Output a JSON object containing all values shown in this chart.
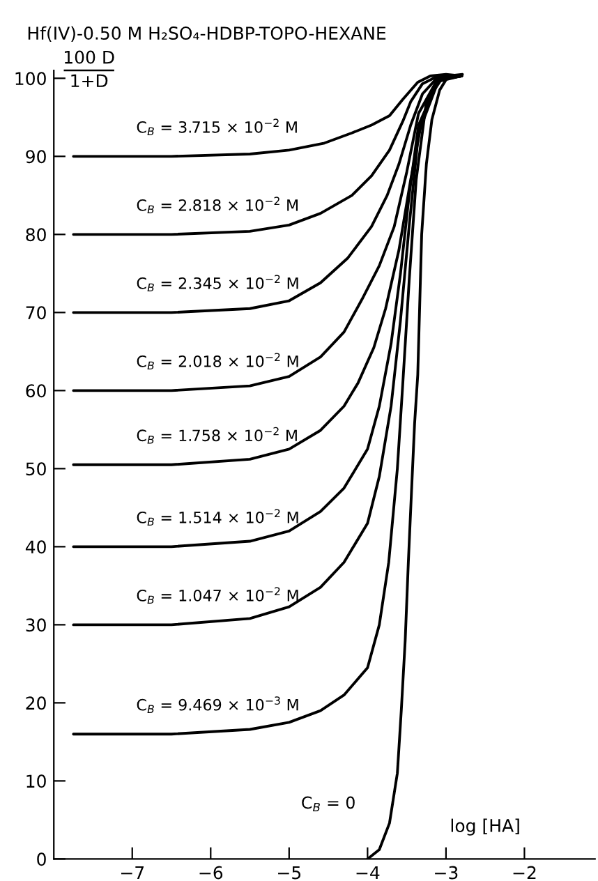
{
  "chart_data": {
    "type": "line",
    "title": "Hf(IV)-0.50 M H₂SO₄-HDBP-TOPO-HEXANE",
    "xlabel": "log [HA]",
    "ylabel": "100 D\n1+D",
    "xlim": [
      -8,
      -1.1
    ],
    "ylim": [
      0,
      101
    ],
    "xticks": [
      -7,
      -6,
      -5,
      -4,
      -3,
      -2
    ],
    "yticks": [
      0,
      10,
      20,
      30,
      40,
      50,
      60,
      70,
      80,
      90,
      100
    ],
    "grid": false,
    "legend": false,
    "marker": "none",
    "line_style": "solid",
    "series": [
      {
        "color": "#000000",
        "x": [
          -7.75,
          -6.5,
          -5.5,
          -5.0,
          -4.55,
          -4.2,
          -3.95,
          -3.72,
          -3.55,
          -3.36,
          -3.2,
          -3.0,
          -2.8
        ],
        "values": [
          90,
          90,
          90.3,
          90.8,
          91.7,
          93,
          94,
          95.2,
          97.3,
          99.5,
          100.3,
          100.5,
          100.3
        ]
      },
      {
        "color": "#000000",
        "x": [
          -7.75,
          -6.5,
          -5.5,
          -5.0,
          -4.6,
          -4.2,
          -3.95,
          -3.72,
          -3.55,
          -3.45,
          -3.3,
          -3.1,
          -2.8
        ],
        "values": [
          80,
          80,
          80.4,
          81.2,
          82.7,
          85,
          87.5,
          90.8,
          94.5,
          97,
          99.3,
          100.3,
          100.3
        ]
      },
      {
        "color": "#000000",
        "x": [
          -7.75,
          -6.5,
          -5.5,
          -5.0,
          -4.6,
          -4.25,
          -3.95,
          -3.75,
          -3.6,
          -3.45,
          -3.3,
          -3.1,
          -2.8
        ],
        "values": [
          70,
          70,
          70.5,
          71.5,
          73.8,
          77,
          81,
          85,
          89,
          94,
          98,
          100.2,
          100.3
        ]
      },
      {
        "color": "#000000",
        "x": [
          -7.75,
          -6.5,
          -5.5,
          -5.0,
          -4.6,
          -4.3,
          -4.07,
          -3.85,
          -3.66,
          -3.5,
          -3.35,
          -3.1,
          -2.8
        ],
        "values": [
          60,
          60,
          60.6,
          61.8,
          64.3,
          67.5,
          71.7,
          76,
          81,
          88,
          95.5,
          100,
          100.3
        ]
      },
      {
        "color": "#000000",
        "x": [
          -7.75,
          -6.5,
          -5.5,
          -5.0,
          -4.6,
          -4.3,
          -4.12,
          -3.92,
          -3.77,
          -3.6,
          -3.45,
          -3.3,
          -3.1,
          -2.8
        ],
        "values": [
          50.5,
          50.5,
          51.2,
          52.5,
          54.9,
          58,
          61,
          65.5,
          70.5,
          78,
          87,
          95,
          99.8,
          100.3
        ]
      },
      {
        "color": "#000000",
        "x": [
          -7.75,
          -6.5,
          -5.5,
          -5.0,
          -4.6,
          -4.3,
          -4.0,
          -3.85,
          -3.7,
          -3.58,
          -3.47,
          -3.35,
          -3.1,
          -2.8
        ],
        "values": [
          40,
          40,
          40.7,
          42,
          44.5,
          47.5,
          52.5,
          58,
          66,
          75,
          85,
          94,
          99.7,
          100.3
        ]
      },
      {
        "color": "#000000",
        "x": [
          -7.75,
          -6.5,
          -5.5,
          -5.0,
          -4.6,
          -4.3,
          -4.0,
          -3.85,
          -3.7,
          -3.58,
          -3.47,
          -3.35,
          -3.1,
          -2.8
        ],
        "values": [
          30,
          30,
          30.8,
          32.3,
          34.8,
          38,
          43,
          49,
          58,
          69,
          81,
          93,
          99.6,
          100.3
        ]
      },
      {
        "color": "#000000",
        "x": [
          -7.75,
          -6.5,
          -5.5,
          -5.0,
          -4.6,
          -4.3,
          -4.0,
          -3.85,
          -3.73,
          -3.62,
          -3.55,
          -3.47,
          -3.38,
          -3.25,
          -3.05,
          -2.8
        ],
        "values": [
          16,
          16,
          16.6,
          17.5,
          19,
          21,
          24.5,
          30,
          38,
          50,
          61,
          74,
          87,
          97,
          100,
          100.3
        ]
      },
      {
        "color": "#000000",
        "x": [
          -4.0,
          -3.85,
          -3.72,
          -3.62,
          -3.57,
          -3.52,
          -3.48,
          -3.44,
          -3.4,
          -3.36,
          -3.31,
          -3.25,
          -3.18,
          -3.08,
          -2.97,
          -2.79
        ],
        "values": [
          0,
          1.2,
          4.6,
          11,
          19,
          28,
          38,
          47,
          55.8,
          62,
          80,
          89,
          94.7,
          98.5,
          100.3,
          100.5
        ]
      }
    ],
    "annotations": [
      "C$_{B}$ = 3.715 × 10$^{−2}$ M",
      "C$_{B}$ = 2.818 × 10$^{−2}$ M",
      "C$_{B}$ = 2.345 × 10$^{−2}$ M",
      "C$_{B}$ = 2.018 × 10$^{−2}$ M",
      "C$_{B}$ = 1.758 × 10$^{−2}$ M",
      "C$_{B}$ = 1.514 × 10$^{−2}$ M",
      "C$_{B}$ = 1.047 × 10$^{−2}$ M",
      "C$_{B}$ = 9.469 × 10$^{−3}$ M",
      "C$_{B}$ = 0"
    ]
  }
}
